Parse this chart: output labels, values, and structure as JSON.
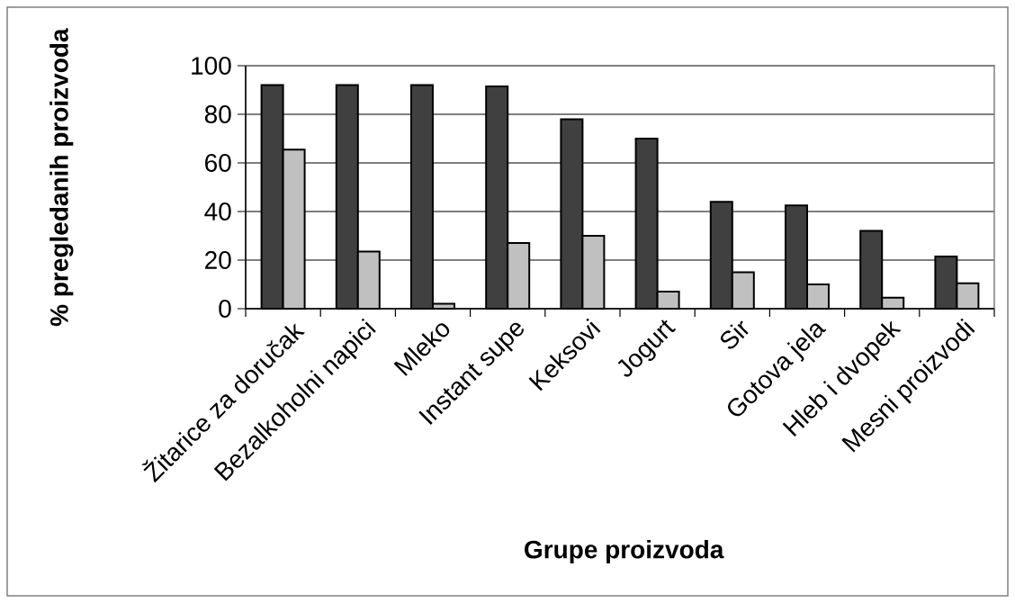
{
  "chart_data": {
    "type": "bar",
    "xlabel": "Grupe proizvoda",
    "ylabel": "% pregledanih proizvoda",
    "categories": [
      "Žitarice za doručak",
      "Bezalkoholni napici",
      "Mleko",
      "Instant supe",
      "Keksovi",
      "Jogurt",
      "Sir",
      "Gotova jela",
      "Hleb i dvopek",
      "Mesni proizvodi"
    ],
    "series": [
      {
        "color": "#404040",
        "values": [
          92,
          92,
          92,
          91.5,
          78,
          70,
          44,
          42.5,
          32,
          21.5
        ]
      },
      {
        "color": "#c0c0c0",
        "values": [
          65.5,
          23.5,
          2,
          27,
          30,
          7,
          15,
          10,
          4.5,
          10.5
        ]
      }
    ],
    "ylim": [
      0,
      100
    ],
    "yticks": [
      0,
      20,
      40,
      60,
      80,
      100
    ],
    "grid": "y"
  }
}
